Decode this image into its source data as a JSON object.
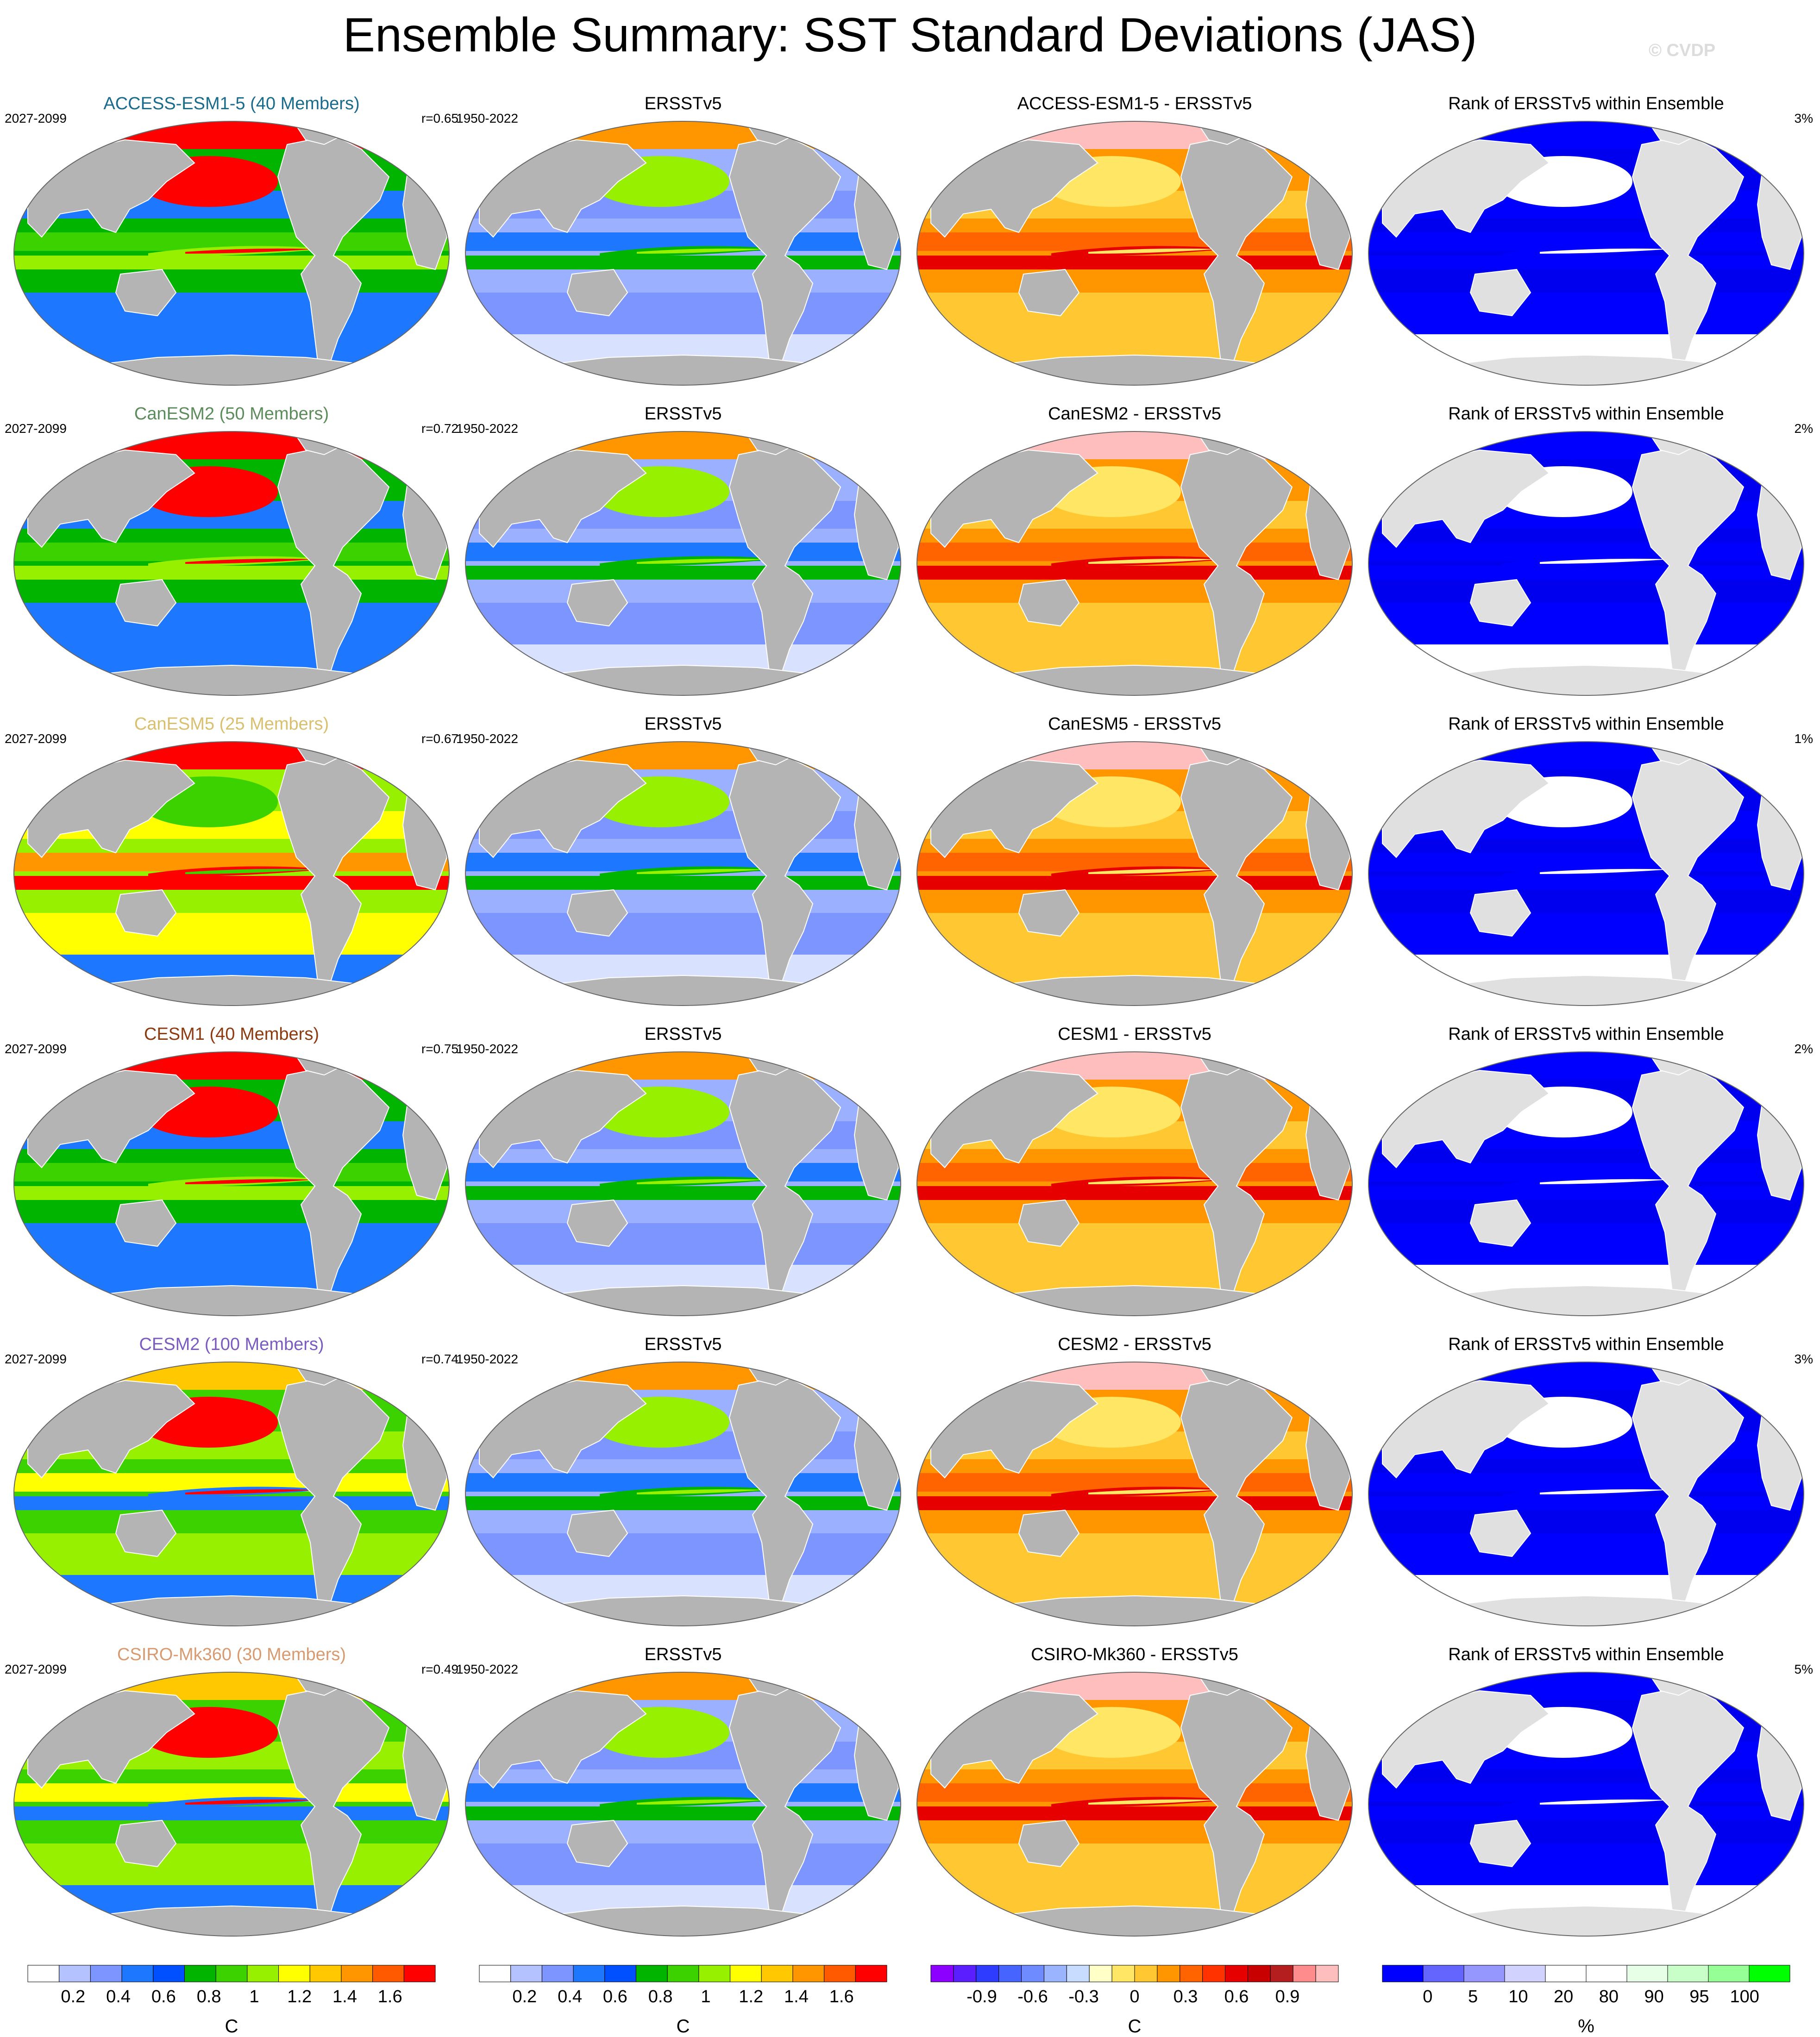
{
  "title": "Ensemble Summary: SST Standard Deviations (JAS)",
  "watermark": "© CVDP",
  "rows": [
    {
      "model_title": "ACCESS-ESM1-5 (40 Members)",
      "model_color": "#1a6b8c",
      "model_period": "2027-2099",
      "r_value": "r=0.65",
      "obs_title": "ERSSTv5",
      "obs_period": "1950-2022",
      "diff_title": "ACCESS-ESM1-5 - ERSSTv5",
      "rank_title": "Rank of ERSSTv5 within Ensemble",
      "rank_pct": "3%",
      "model_scheme": "green"
    },
    {
      "model_title": "CanESM2 (50 Members)",
      "model_color": "#5c8c5c",
      "model_period": "2027-2099",
      "r_value": "r=0.72",
      "obs_title": "ERSSTv5",
      "obs_period": "1950-2022",
      "diff_title": "CanESM2 - ERSSTv5",
      "rank_title": "Rank of ERSSTv5 within Ensemble",
      "rank_pct": "2%",
      "model_scheme": "green"
    },
    {
      "model_title": "CanESM5 (25 Members)",
      "model_color": "#d8c070",
      "model_period": "2027-2099",
      "r_value": "r=0.67",
      "obs_title": "ERSSTv5",
      "obs_period": "1950-2022",
      "diff_title": "CanESM5 - ERSSTv5",
      "rank_title": "Rank of ERSSTv5 within Ensemble",
      "rank_pct": "1%",
      "model_scheme": "hot"
    },
    {
      "model_title": "CESM1 (40 Members)",
      "model_color": "#8c3a10",
      "model_period": "2027-2099",
      "r_value": "r=0.75",
      "obs_title": "ERSSTv5",
      "obs_period": "1950-2022",
      "diff_title": "CESM1 - ERSSTv5",
      "rank_title": "Rank of ERSSTv5 within Ensemble",
      "rank_pct": "2%",
      "model_scheme": "green"
    },
    {
      "model_title": "CESM2 (100 Members)",
      "model_color": "#7a5cc0",
      "model_period": "2027-2099",
      "r_value": "r=0.74",
      "obs_title": "ERSSTv5",
      "obs_period": "1950-2022",
      "diff_title": "CESM2 - ERSSTv5",
      "rank_title": "Rank of ERSSTv5 within Ensemble",
      "rank_pct": "3%",
      "model_scheme": "greenyellow"
    },
    {
      "model_title": "CSIRO-Mk360 (30 Members)",
      "model_color": "#d89a70",
      "model_period": "2027-2099",
      "r_value": "r=0.49",
      "obs_title": "ERSSTv5",
      "obs_period": "1950-2022",
      "diff_title": "CSIRO-Mk360 - ERSSTv5",
      "rank_title": "Rank of ERSSTv5 within Ensemble",
      "rank_pct": "5%",
      "model_scheme": "greenyellow"
    }
  ],
  "colorbars": [
    {
      "unit": "C",
      "colors": [
        "#ffffff",
        "#b4c3ff",
        "#7d96ff",
        "#1e78ff",
        "#0050ff",
        "#00b400",
        "#3cd200",
        "#96f000",
        "#ffff00",
        "#ffc800",
        "#ff9600",
        "#ff5a00",
        "#ff0000"
      ],
      "ticks": [
        "0.2",
        "0.4",
        "0.6",
        "0.8",
        "1",
        "1.2",
        "1.4",
        "1.6"
      ]
    },
    {
      "unit": "C",
      "colors": [
        "#ffffff",
        "#b4c3ff",
        "#7d96ff",
        "#1e78ff",
        "#0050ff",
        "#00b400",
        "#3cd200",
        "#96f000",
        "#ffff00",
        "#ffc800",
        "#ff9600",
        "#ff5a00",
        "#ff0000"
      ],
      "ticks": [
        "0.2",
        "0.4",
        "0.6",
        "0.8",
        "1",
        "1.2",
        "1.4",
        "1.6"
      ]
    },
    {
      "unit": "C",
      "colors": [
        "#8c00ff",
        "#5a1eff",
        "#2d3cff",
        "#4664ff",
        "#6e8cff",
        "#9bb4ff",
        "#c8dcff",
        "#ffffc8",
        "#ffe664",
        "#ffc832",
        "#ff9600",
        "#ff6400",
        "#ff3200",
        "#e60000",
        "#c80000",
        "#b41e1e",
        "#ff8c8c",
        "#ffbebe"
      ],
      "ticks": [
        "-0.9",
        "-0.6",
        "-0.3",
        "0",
        "0.3",
        "0.6",
        "0.9"
      ]
    },
    {
      "unit": "%",
      "colors": [
        "#0000ff",
        "#6464ff",
        "#9696ff",
        "#d2d2ff",
        "#ffffff",
        "#ffffff",
        "#e6ffe6",
        "#c8ffc8",
        "#96ff96",
        "#00ff00"
      ],
      "ticks": [
        "0",
        "5",
        "10",
        "20",
        "80",
        "90",
        "95",
        "100"
      ]
    }
  ]
}
